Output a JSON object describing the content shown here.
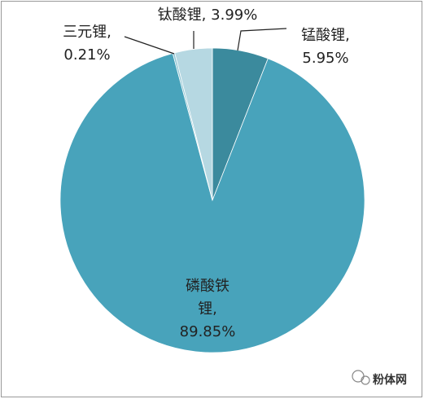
{
  "chart_data": {
    "type": "pie",
    "categories": [
      "锰酸锂,",
      "磷酸铁锂,",
      "三元锂,",
      "钛酸锂,"
    ],
    "values": [
      5.95,
      89.85,
      0.21,
      3.99
    ],
    "value_labels": [
      "5.95%",
      "89.85%",
      "0.21%",
      "3.99%"
    ],
    "colors": [
      "#3b8a9d",
      "#48a3bb",
      "#8ec4d2",
      "#b6d8e2"
    ]
  },
  "watermark": "粉体网"
}
